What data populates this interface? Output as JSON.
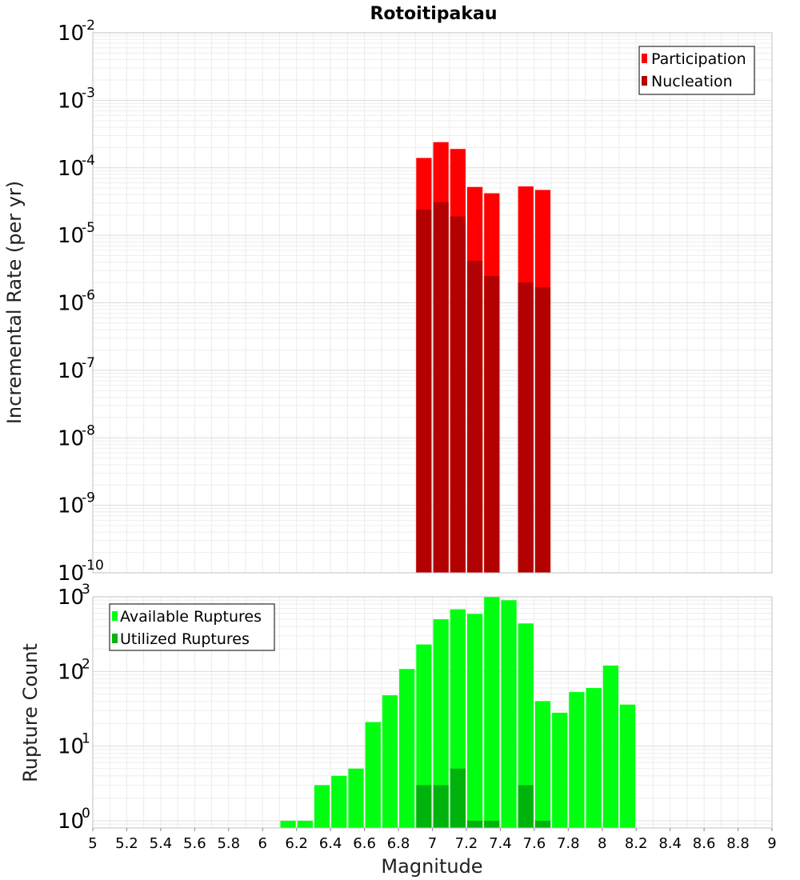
{
  "chart_data": [
    {
      "type": "bar",
      "title": "Rotoitipakau",
      "xlabel": "",
      "ylabel": "Incremental Rate (per yr)",
      "yscale": "log",
      "xlim": [
        5,
        9
      ],
      "ylim": [
        1e-10,
        0.01
      ],
      "y_ticks": [
        {
          "base": "10",
          "exp": "-10"
        },
        {
          "base": "10",
          "exp": "-9"
        },
        {
          "base": "10",
          "exp": "-8"
        },
        {
          "base": "10",
          "exp": "-7"
        },
        {
          "base": "10",
          "exp": "-6"
        },
        {
          "base": "10",
          "exp": "-5"
        },
        {
          "base": "10",
          "exp": "-4"
        },
        {
          "base": "10",
          "exp": "-3"
        },
        {
          "base": "10",
          "exp": "-2"
        }
      ],
      "grid": true,
      "legend_position": "top-right",
      "bar_width": 0.1,
      "series": [
        {
          "name": "Participation",
          "color": "#ff0000",
          "x": [
            6.95,
            7.05,
            7.15,
            7.25,
            7.35,
            7.55,
            7.65
          ],
          "values": [
            0.00014,
            0.00024,
            0.00019,
            5.2e-05,
            4.2e-05,
            5.3e-05,
            4.7e-05
          ]
        },
        {
          "name": "Nucleation",
          "color": "#b30000",
          "x": [
            6.95,
            7.05,
            7.15,
            7.25,
            7.35,
            7.55,
            7.65
          ],
          "values": [
            2.4e-05,
            3.1e-05,
            1.9e-05,
            4.2e-06,
            2.5e-06,
            2e-06,
            1.7e-06
          ]
        }
      ]
    },
    {
      "type": "bar",
      "title": "",
      "xlabel": "Magnitude",
      "ylabel": "Rupture Count",
      "yscale": "log",
      "xlim": [
        5,
        9
      ],
      "ylim": [
        0.8,
        1000
      ],
      "y_ticks": [
        {
          "base": "10",
          "exp": "0",
          "value": 1
        },
        {
          "base": "10",
          "exp": "1",
          "value": 10
        },
        {
          "base": "10",
          "exp": "2",
          "value": 100
        },
        {
          "base": "10",
          "exp": "3",
          "value": 1000
        }
      ],
      "x_ticks": [
        "5",
        "5.2",
        "5.4",
        "5.6",
        "5.8",
        "6",
        "6.2",
        "6.4",
        "6.6",
        "6.8",
        "7",
        "7.2",
        "7.4",
        "7.6",
        "7.8",
        "8",
        "8.2",
        "8.4",
        "8.6",
        "8.8",
        "9"
      ],
      "grid": true,
      "legend_position": "top-left",
      "bar_width": 0.1,
      "series": [
        {
          "name": "Available Ruptures",
          "color": "#00ff11",
          "x": [
            6.15,
            6.25,
            6.35,
            6.45,
            6.55,
            6.65,
            6.75,
            6.85,
            6.95,
            7.05,
            7.15,
            7.25,
            7.35,
            7.45,
            7.55,
            7.65,
            7.75,
            7.85,
            7.95,
            8.05,
            8.15
          ],
          "values": [
            1,
            1,
            3,
            4,
            5,
            21,
            48,
            108,
            230,
            500,
            680,
            590,
            1000,
            900,
            440,
            40,
            28,
            53,
            60,
            120,
            36
          ]
        },
        {
          "name": "Utilized Ruptures",
          "color": "#00b30c",
          "x": [
            6.95,
            7.05,
            7.15,
            7.25,
            7.35,
            7.55,
            7.65
          ],
          "values": [
            3,
            3,
            5,
            1,
            1,
            3,
            1
          ]
        }
      ]
    }
  ]
}
